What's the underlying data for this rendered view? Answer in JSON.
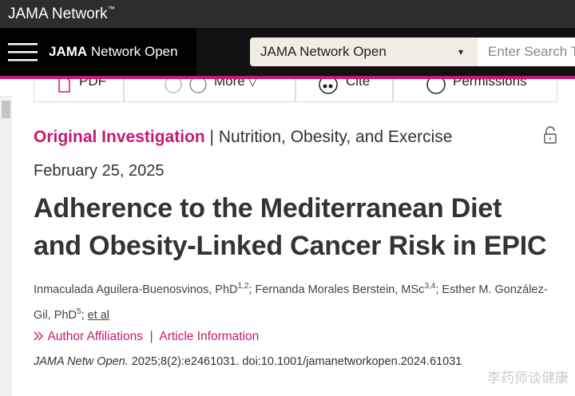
{
  "header": {
    "brand": "JAMA Network",
    "brand_mark": "™"
  },
  "nav": {
    "site_title_bold": "JAMA",
    "site_title_rest": "Network Open",
    "dropdown": "JAMA Network Open",
    "dropdown_arrow": "▾",
    "search_placeholder": "Enter Search T"
  },
  "toolbar": {
    "items": [
      "PDF",
      "More",
      "Cite",
      "Permissions"
    ],
    "more_arrow": "▽"
  },
  "article": {
    "type": "Original Investigation",
    "separator": "|",
    "section": "Nutrition, Obesity, and Exercise",
    "date": "February 25, 2025",
    "title_lines": [
      "Adherence to the Mediterranean Diet",
      "and Obesity-Linked Cancer Risk in EPIC"
    ],
    "authors": [
      {
        "name": "Inmaculada Aguilera-Buenosvinos, PhD",
        "sup": "1,2",
        "sep": ";"
      },
      {
        "name": "Fernanda Morales Berstein, MSc",
        "sup": "3,4",
        "sep": ";"
      },
      {
        "name": "Esther M. González-Gil, PhD",
        "sup": "5",
        "sep": ";"
      }
    ],
    "et_al": "et al",
    "links": [
      "Author Affiliations",
      "Article Information"
    ],
    "links_separator": "|",
    "citation_journal": "JAMA Netw Open.",
    "citation_rest": "2025;8(2):e2461031. doi:10.1001/jamanetworkopen.2024.61031"
  },
  "watermark": "李药师谈健康"
}
